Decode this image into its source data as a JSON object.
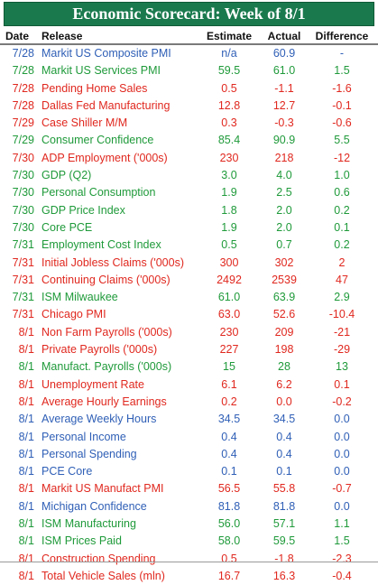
{
  "title": "Economic Scorecard: Week of 8/1",
  "headers": {
    "date": "Date",
    "release": "Release",
    "estimate": "Estimate",
    "actual": "Actual",
    "difference": "Difference"
  },
  "colors": {
    "green": "#1f9a3a",
    "red": "#e0281f",
    "blue": "#2f5fb6",
    "title_bg": "#1a7a4e"
  },
  "rows": [
    {
      "date": "7/28",
      "release": "Markit US Composite PMI",
      "estimate": "n/a",
      "actual": "60.9",
      "difference": "-",
      "tone": "blue"
    },
    {
      "date": "7/28",
      "release": "Markit US Services PMI",
      "estimate": "59.5",
      "actual": "61.0",
      "difference": "1.5",
      "tone": "green"
    },
    {
      "date": "7/28",
      "release": "Pending Home Sales",
      "estimate": "0.5",
      "actual": "-1.1",
      "difference": "-1.6",
      "tone": "red"
    },
    {
      "date": "7/28",
      "release": "Dallas Fed Manufacturing",
      "estimate": "12.8",
      "actual": "12.7",
      "difference": "-0.1",
      "tone": "red"
    },
    {
      "date": "7/29",
      "release": "Case Shiller M/M",
      "estimate": "0.3",
      "actual": "-0.3",
      "difference": "-0.6",
      "tone": "red"
    },
    {
      "date": "7/29",
      "release": "Consumer Confidence",
      "estimate": "85.4",
      "actual": "90.9",
      "difference": "5.5",
      "tone": "green"
    },
    {
      "date": "7/30",
      "release": "ADP Employment ('000s)",
      "estimate": "230",
      "actual": "218",
      "difference": "-12",
      "tone": "red"
    },
    {
      "date": "7/30",
      "release": "GDP (Q2)",
      "estimate": "3.0",
      "actual": "4.0",
      "difference": "1.0",
      "tone": "green"
    },
    {
      "date": "7/30",
      "release": "Personal Consumption",
      "estimate": "1.9",
      "actual": "2.5",
      "difference": "0.6",
      "tone": "green"
    },
    {
      "date": "7/30",
      "release": "GDP Price Index",
      "estimate": "1.8",
      "actual": "2.0",
      "difference": "0.2",
      "tone": "green"
    },
    {
      "date": "7/30",
      "release": "Core PCE",
      "estimate": "1.9",
      "actual": "2.0",
      "difference": "0.1",
      "tone": "green"
    },
    {
      "date": "7/31",
      "release": "Employment Cost Index",
      "estimate": "0.5",
      "actual": "0.7",
      "difference": "0.2",
      "tone": "green"
    },
    {
      "date": "7/31",
      "release": "Initial Jobless Claims ('000s)",
      "estimate": "300",
      "actual": "302",
      "difference": "2",
      "tone": "red"
    },
    {
      "date": "7/31",
      "release": "Continuing Claims ('000s)",
      "estimate": "2492",
      "actual": "2539",
      "difference": "47",
      "tone": "red"
    },
    {
      "date": "7/31",
      "release": "ISM Milwaukee",
      "estimate": "61.0",
      "actual": "63.9",
      "difference": "2.9",
      "tone": "green"
    },
    {
      "date": "7/31",
      "release": "Chicago PMI",
      "estimate": "63.0",
      "actual": "52.6",
      "difference": "-10.4",
      "tone": "red"
    },
    {
      "date": "8/1",
      "release": "Non Farm Payrolls ('000s)",
      "estimate": "230",
      "actual": "209",
      "difference": "-21",
      "tone": "red"
    },
    {
      "date": "8/1",
      "release": "Private Payrolls ('000s)",
      "estimate": "227",
      "actual": "198",
      "difference": "-29",
      "tone": "red"
    },
    {
      "date": "8/1",
      "release": "Manufact. Payrolls ('000s)",
      "estimate": "15",
      "actual": "28",
      "difference": "13",
      "tone": "green"
    },
    {
      "date": "8/1",
      "release": "Unemployment Rate",
      "estimate": "6.1",
      "actual": "6.2",
      "difference": "0.1",
      "tone": "red"
    },
    {
      "date": "8/1",
      "release": "Average Hourly Earnings",
      "estimate": "0.2",
      "actual": "0.0",
      "difference": "-0.2",
      "tone": "red"
    },
    {
      "date": "8/1",
      "release": "Average Weekly Hours",
      "estimate": "34.5",
      "actual": "34.5",
      "difference": "0.0",
      "tone": "blue"
    },
    {
      "date": "8/1",
      "release": "Personal Income",
      "estimate": "0.4",
      "actual": "0.4",
      "difference": "0.0",
      "tone": "blue"
    },
    {
      "date": "8/1",
      "release": "Personal Spending",
      "estimate": "0.4",
      "actual": "0.4",
      "difference": "0.0",
      "tone": "blue"
    },
    {
      "date": "8/1",
      "release": "PCE Core",
      "estimate": "0.1",
      "actual": "0.1",
      "difference": "0.0",
      "tone": "blue"
    },
    {
      "date": "8/1",
      "release": "Markit US Manufact PMI",
      "estimate": "56.5",
      "actual": "55.8",
      "difference": "-0.7",
      "tone": "red"
    },
    {
      "date": "8/1",
      "release": "Michigan Confidence",
      "estimate": "81.8",
      "actual": "81.8",
      "difference": "0.0",
      "tone": "blue"
    },
    {
      "date": "8/1",
      "release": "ISM Manufacturing",
      "estimate": "56.0",
      "actual": "57.1",
      "difference": "1.1",
      "tone": "green"
    },
    {
      "date": "8/1",
      "release": "ISM Prices Paid",
      "estimate": "58.0",
      "actual": "59.5",
      "difference": "1.5",
      "tone": "green"
    },
    {
      "date": "8/1",
      "release": "Construction Spending",
      "estimate": "0.5",
      "actual": "-1.8",
      "difference": "-2.3",
      "tone": "red"
    },
    {
      "date": "8/1",
      "release": "Total Vehicle Sales (mln)",
      "estimate": "16.7",
      "actual": "16.3",
      "difference": "-0.4",
      "tone": "red"
    }
  ]
}
